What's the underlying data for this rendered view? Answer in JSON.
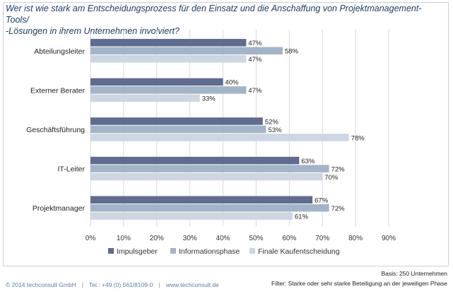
{
  "title_lines": [
    "Wer ist wie stark am Entscheidungsprozess für den Einsatz und die Anschaffung von Projektmanagement-Tools/",
    "-Lösungen in ihrem Unternehmen involviert?"
  ],
  "chart_data": {
    "type": "bar",
    "orientation": "horizontal",
    "categories": [
      "Abteilungsleiter",
      "Externer Berater",
      "Geschäftsführung",
      "IT-Leiter",
      "Projektmanager"
    ],
    "series": [
      {
        "name": "Impulsgeber",
        "values": [
          47,
          40,
          52,
          63,
          67
        ],
        "color": "#5f6b8f"
      },
      {
        "name": "Informationsphase",
        "values": [
          58,
          47,
          53,
          72,
          72
        ],
        "color": "#a4b4c8"
      },
      {
        "name": "Finale Kaufentscheidung",
        "values": [
          47,
          33,
          78,
          70,
          61
        ],
        "color": "#cdd6e2"
      }
    ],
    "xlim": [
      0,
      90
    ],
    "xticks": [
      0,
      10,
      20,
      30,
      40,
      50,
      60,
      70,
      80,
      90
    ],
    "tick_suffix": "%",
    "grid": true,
    "legend_position": "bottom"
  },
  "footer": {
    "copyright": "© 2014 techconsult GmbH",
    "phone": "Tel.: +49 (0) 561/8109-0",
    "website": "www.techconsult.de",
    "basis": "Basis: 250 Unternehmen",
    "filter": "Filter: Starke oder sehr starke Beteiligung an der jeweiligen Phase"
  }
}
